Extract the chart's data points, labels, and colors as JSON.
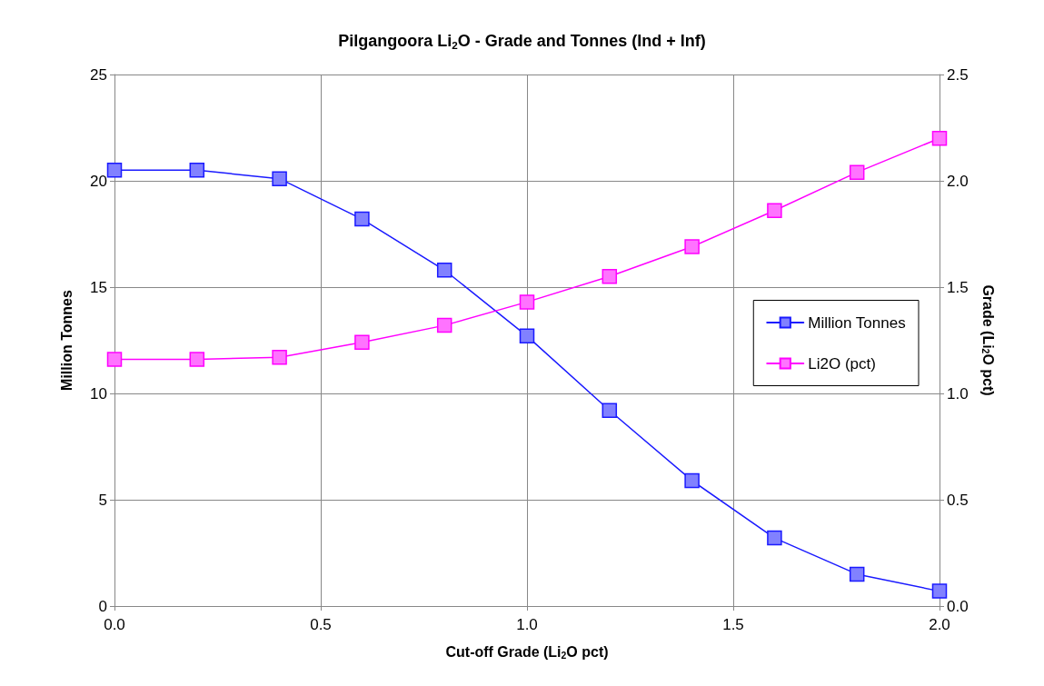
{
  "chart_data": {
    "type": "line",
    "title": "Pilgangoora Li$_{2}$O - Grade and Tonnes (Ind + Inf)",
    "xlabel": "Cut-off Grade (Li$_{2}$O pct)",
    "ylabel": "Million Tonnes",
    "y2label": "Grade (Li$_{2}$O pct)",
    "x": [
      0,
      0.2,
      0.4,
      0.6,
      0.8,
      1.0,
      1.2,
      1.4,
      1.6,
      1.8,
      2.0
    ],
    "series": [
      {
        "name": "Million Tonnes",
        "color": "#1a1aff",
        "values": [
          20.5,
          20.5,
          20.1,
          18.2,
          15.8,
          12.7,
          9.2,
          5.9,
          3.2,
          1.5,
          0.7
        ]
      },
      {
        "name": "Li2O (pct)",
        "color": "#ff00ff",
        "axis": "y2",
        "values": [
          1.16,
          1.16,
          1.17,
          1.24,
          1.32,
          1.43,
          1.55,
          1.69,
          1.86,
          2.04,
          2.2
        ]
      }
    ],
    "xlim": [
      0,
      2
    ],
    "xticks": [
      {
        "value": 0,
        "label": "0.0"
      },
      0.5,
      {
        "value": 1,
        "label": "1.0"
      },
      1.5,
      {
        "value": 2,
        "label": "2.0"
      }
    ],
    "ylim": [
      0,
      25
    ],
    "yticks": [
      0,
      5,
      10,
      15,
      20,
      25
    ],
    "y2lim": [
      0,
      2.5
    ],
    "y2ticks": [
      {
        "value": 0,
        "label": "0.0"
      },
      0.5,
      {
        "value": 1,
        "label": "1.0"
      },
      1.5,
      {
        "value": 2,
        "label": "2.0"
      },
      2.5
    ],
    "grid": true,
    "legend": "right",
    "marker": "square",
    "line_style": "solid"
  }
}
